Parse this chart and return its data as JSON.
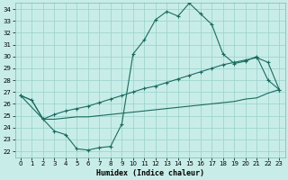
{
  "xlabel": "Humidex (Indice chaleur)",
  "xlim": [
    -0.5,
    23.5
  ],
  "ylim": [
    21.5,
    34.5
  ],
  "xticks": [
    0,
    1,
    2,
    3,
    4,
    5,
    6,
    7,
    8,
    9,
    10,
    11,
    12,
    13,
    14,
    15,
    16,
    17,
    18,
    19,
    20,
    21,
    22,
    23
  ],
  "yticks": [
    22,
    23,
    24,
    25,
    26,
    27,
    28,
    29,
    30,
    31,
    32,
    33,
    34
  ],
  "bg_color": "#c8ede8",
  "grid_color": "#9fd4ce",
  "line_color": "#1a6b60",
  "line1_x": [
    0,
    1,
    2,
    3,
    4,
    5,
    6,
    7,
    8,
    9,
    10,
    11,
    12,
    13,
    14,
    15,
    16,
    17,
    18,
    19,
    20,
    21,
    22,
    23
  ],
  "line1_y": [
    26.7,
    26.3,
    24.7,
    23.7,
    23.4,
    22.2,
    22.1,
    22.3,
    22.4,
    24.3,
    30.2,
    31.4,
    33.1,
    33.8,
    33.4,
    34.5,
    33.6,
    32.7,
    30.2,
    29.4,
    29.6,
    30.0,
    28.0,
    27.2
  ],
  "line2_x": [
    0,
    2,
    3,
    4,
    5,
    6,
    7,
    8,
    9,
    10,
    11,
    12,
    13,
    14,
    15,
    16,
    17,
    18,
    19,
    20,
    21,
    22,
    23
  ],
  "line2_y": [
    26.7,
    24.7,
    25.1,
    25.4,
    25.6,
    25.8,
    26.1,
    26.4,
    26.7,
    27.0,
    27.3,
    27.5,
    27.8,
    28.1,
    28.4,
    28.7,
    29.0,
    29.3,
    29.5,
    29.7,
    29.9,
    29.5,
    27.2
  ],
  "line3_x": [
    0,
    1,
    2,
    3,
    4,
    5,
    6,
    7,
    8,
    9,
    10,
    11,
    12,
    13,
    14,
    15,
    16,
    17,
    18,
    19,
    20,
    21,
    22,
    23
  ],
  "line3_y": [
    26.7,
    26.3,
    24.7,
    24.7,
    24.8,
    24.9,
    24.9,
    25.0,
    25.1,
    25.2,
    25.3,
    25.4,
    25.5,
    25.6,
    25.7,
    25.8,
    25.9,
    26.0,
    26.1,
    26.2,
    26.4,
    26.5,
    26.9,
    27.2
  ]
}
